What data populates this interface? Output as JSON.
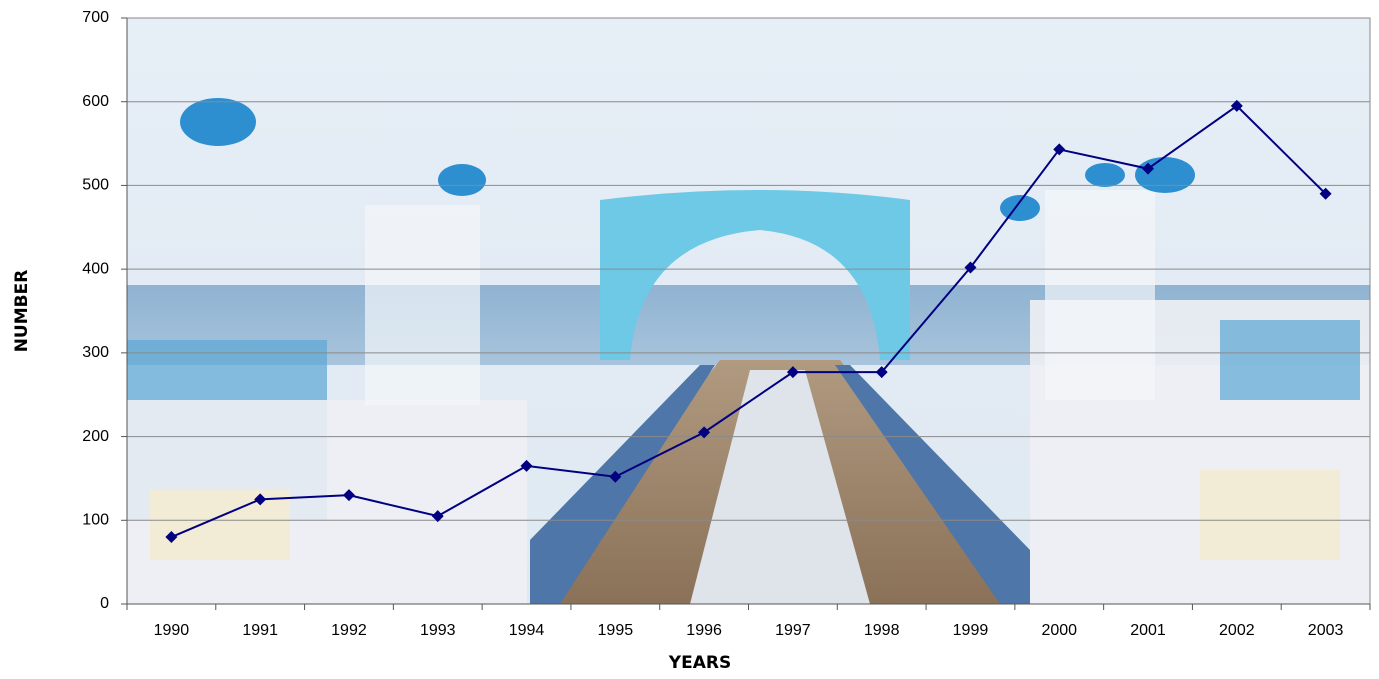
{
  "chart_data": {
    "type": "line",
    "categories": [
      "1990",
      "1991",
      "1992",
      "1993",
      "1994",
      "1995",
      "1996",
      "1997",
      "1998",
      "1999",
      "2000",
      "2001",
      "2002",
      "2003"
    ],
    "values": [
      80,
      125,
      130,
      105,
      165,
      152,
      205,
      277,
      277,
      402,
      543,
      520,
      595,
      490
    ],
    "color": "#000080",
    "ylim": [
      0,
      700
    ],
    "yticks": [
      0,
      100,
      200,
      300,
      400,
      500,
      600,
      700
    ],
    "grid": true,
    "xlabel": "YEARS",
    "ylabel": "NUMBER"
  }
}
